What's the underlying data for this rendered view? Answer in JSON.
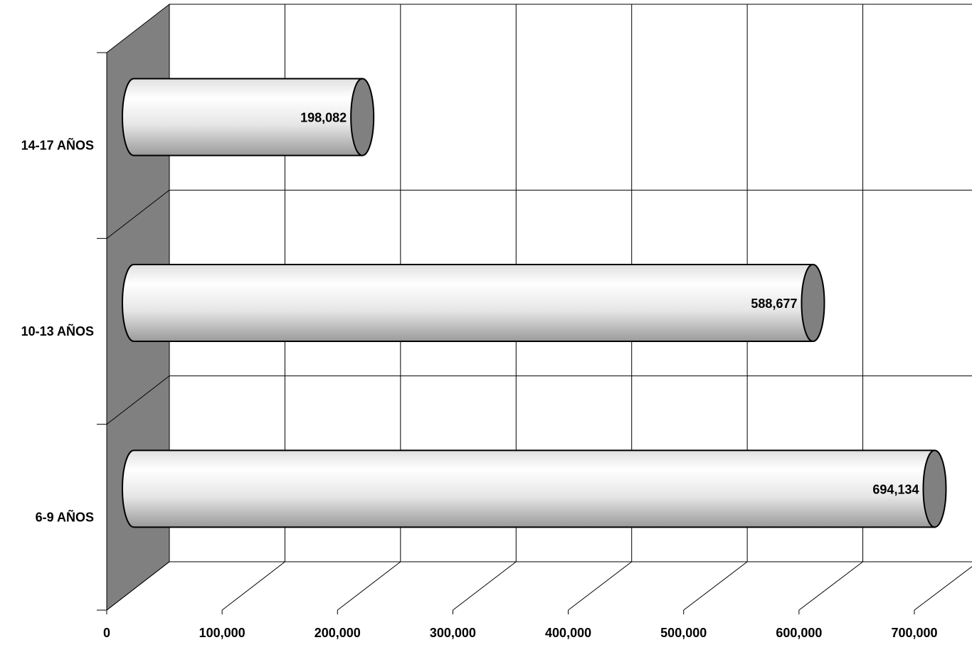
{
  "chart_data": {
    "type": "bar",
    "orientation": "horizontal",
    "style": "3d-cylinder",
    "categories": [
      "6-9 AÑOS",
      "10-13 AÑOS",
      "14-17 AÑOS"
    ],
    "values": [
      694134,
      588677,
      198082
    ],
    "data_labels": [
      "694,134",
      "588,677",
      "198,082"
    ],
    "x_ticks": [
      "0",
      "100,000",
      "200,000",
      "300,000",
      "400,000",
      "500,000",
      "600,000",
      "700,000"
    ],
    "xlim": [
      0,
      700000
    ],
    "title": "",
    "xlabel": "",
    "ylabel": "",
    "grid": true,
    "legend": false
  },
  "colors": {
    "side_wall": "#808080",
    "bar_cap": "#808080",
    "bar_light": "#ffffff",
    "bar_dark": "#9a9a9a",
    "grid": "#000000"
  }
}
